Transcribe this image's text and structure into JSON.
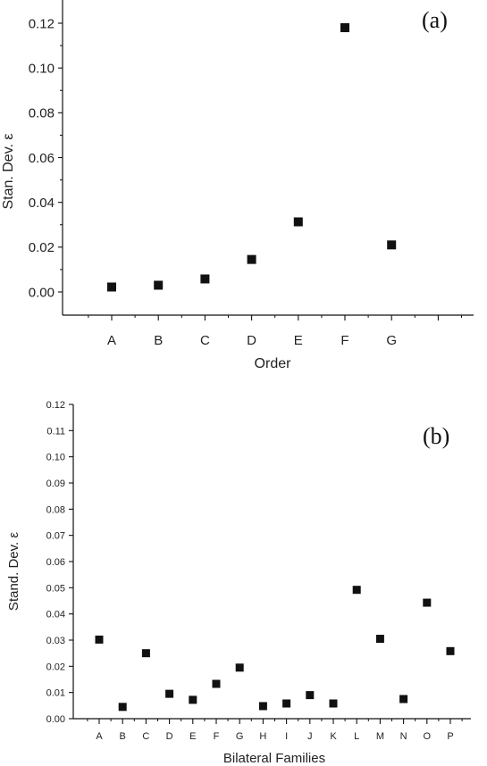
{
  "chart_data": [
    {
      "type": "scatter",
      "panel_label": "(a)",
      "xlabel": "Order",
      "ylabel": "Stan. Dev. ε",
      "categories": [
        "A",
        "B",
        "C",
        "D",
        "E",
        "F",
        "G"
      ],
      "values": [
        0.0022,
        0.003,
        0.0058,
        0.0145,
        0.0313,
        0.118,
        0.021
      ],
      "yticks": [
        "0.00",
        "0.02",
        "0.04",
        "0.06",
        "0.08",
        "0.10",
        "0.12"
      ],
      "ylim": [
        -0.0105,
        0.128
      ],
      "grid": false,
      "marker": "square",
      "marker_color": "#111111"
    },
    {
      "type": "scatter",
      "panel_label": "(b)",
      "xlabel": "Bilateral Families",
      "ylabel": "Stand. Dev. ε",
      "categories": [
        "A",
        "B",
        "C",
        "D",
        "E",
        "F",
        "G",
        "H",
        "I",
        "J",
        "K",
        "L",
        "M",
        "N",
        "O",
        "P"
      ],
      "values": [
        0.0302,
        0.0045,
        0.025,
        0.0095,
        0.0072,
        0.0133,
        0.0195,
        0.0048,
        0.0058,
        0.009,
        0.0058,
        0.0492,
        0.0305,
        0.0075,
        0.0443,
        0.0258
      ],
      "yticks": [
        "0.00",
        "0.01",
        "0.02",
        "0.03",
        "0.04",
        "0.05",
        "0.06",
        "0.07",
        "0.08",
        "0.09",
        "0.10",
        "0.11",
        "0.12"
      ],
      "ylim": [
        0,
        0.12
      ],
      "grid": false,
      "marker": "square",
      "marker_color": "#111111"
    }
  ]
}
